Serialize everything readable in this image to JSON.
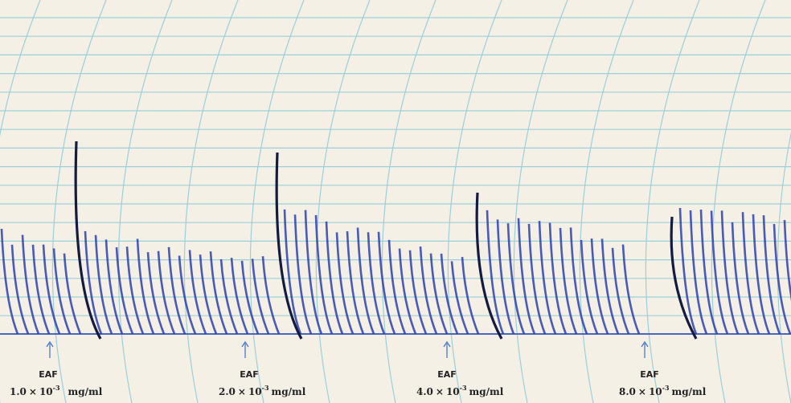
{
  "annotations": [
    {
      "agent": "EAF",
      "mantissa": "1.0",
      "times": "×",
      "base": "10",
      "exponent": "-3",
      "unit": "mg/ml"
    },
    {
      "agent": "EAF",
      "mantissa": "2.0",
      "times": "×",
      "base": "10",
      "exponent": "-3",
      "unit": "mg/ml"
    },
    {
      "agent": "EAF",
      "mantissa": "4.0",
      "times": "×",
      "base": "10",
      "exponent": "-3",
      "unit": "mg/ml"
    },
    {
      "agent": "EAF",
      "mantissa": "8.0",
      "times": "×",
      "base": "10",
      "exponent": "-3",
      "unit": "mg/ml"
    }
  ]
}
